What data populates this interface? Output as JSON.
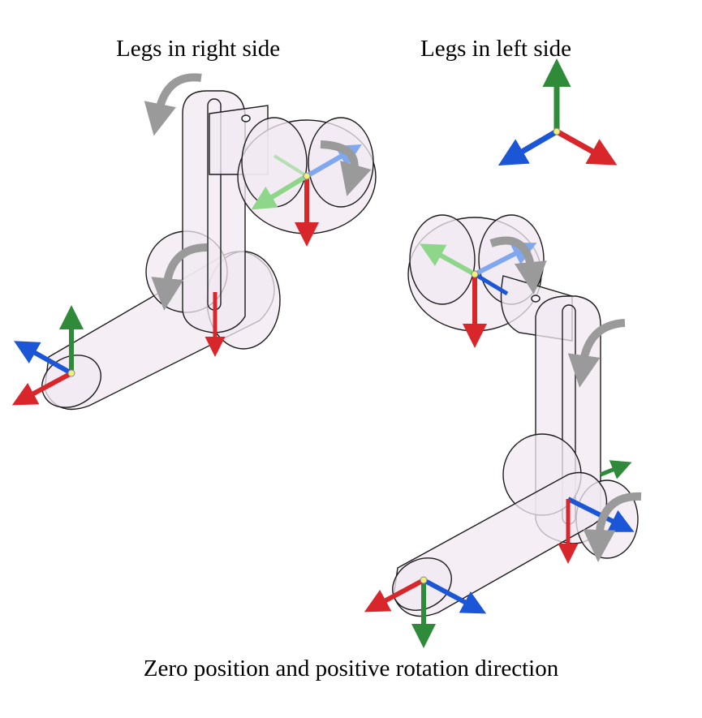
{
  "headings": {
    "right_side": "Legs in right side",
    "left_side": "Legs in left side"
  },
  "caption": "Zero position and positive rotation direction",
  "colors": {
    "axis_x": "#d9262b",
    "axis_y": "#2f8a3a",
    "axis_z": "#1a56d6",
    "axis_light_green": "#8ed68a",
    "axis_light_blue": "#7fa8f0",
    "link_fill": "#f2e9f1",
    "link_stroke": "#1c1c1c",
    "rotation_arrow": "#9a9a9a",
    "origin_marker": "#f1ef7a"
  },
  "icons": [
    "coordinate-triad-icon",
    "rotation-arrow-icon"
  ]
}
